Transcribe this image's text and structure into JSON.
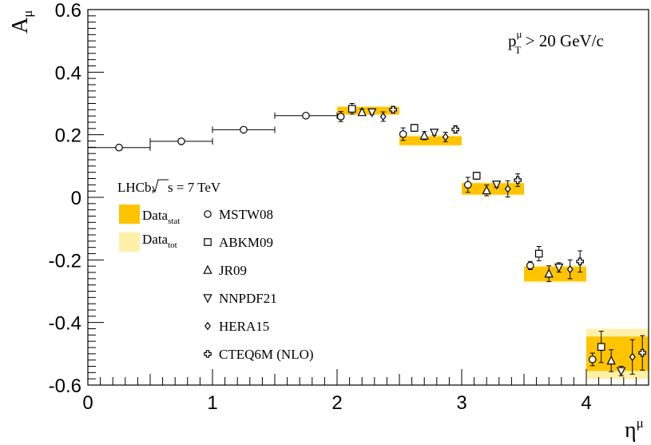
{
  "chart_data": {
    "type": "scatter",
    "xlabel": "η",
    "xlabel_sup": "μ",
    "ylabel": "A",
    "ylabel_sub": "μ",
    "xlim": [
      0,
      4.5
    ],
    "ylim": [
      -0.6,
      0.6
    ],
    "x_ticks": [
      "0",
      "1",
      "2",
      "3",
      "4"
    ],
    "y_ticks": [
      "-0.6",
      "-0.4",
      "-0.2",
      "0",
      "0.2",
      "0.4",
      "0.6"
    ],
    "annotation": {
      "pre": "p",
      "sup": "μ",
      "sub": "T",
      "post": " > 20 GeV/c"
    },
    "experiment": {
      "pre": "LHCb, ",
      "root": "s",
      "post": " = 7 TeV"
    },
    "colors": {
      "data_stat": "#ffc400",
      "data_tot": "#fff0a8",
      "marker": "#000000"
    },
    "data": {
      "legend_stat": {
        "label": "Data",
        "sub": "stat"
      },
      "legend_tot": {
        "label": "Data",
        "sub": "tot"
      },
      "bins": [
        {
          "x_low": 2.0,
          "x_high": 2.5,
          "center": 0.277,
          "stat": 0.012,
          "tot": 0.014
        },
        {
          "x_low": 2.5,
          "x_high": 3.0,
          "center": 0.181,
          "stat": 0.014,
          "tot": 0.017
        },
        {
          "x_low": 3.0,
          "x_high": 3.5,
          "center": 0.027,
          "stat": 0.018,
          "tot": 0.021
        },
        {
          "x_low": 3.5,
          "x_high": 4.0,
          "center": -0.245,
          "stat": 0.023,
          "tot": 0.028
        },
        {
          "x_low": 4.0,
          "x_high": 4.5,
          "center": -0.5,
          "stat": 0.055,
          "tot": 0.08
        }
      ]
    },
    "series": [
      {
        "name": "MSTW08",
        "marker": "circle",
        "points": [
          {
            "x": 0.25,
            "y": 0.159,
            "xerr": 0.25,
            "yerr": 0.0
          },
          {
            "x": 0.75,
            "y": 0.179,
            "xerr": 0.25,
            "yerr": 0.0
          },
          {
            "x": 1.25,
            "y": 0.216,
            "xerr": 0.25,
            "yerr": 0.0
          },
          {
            "x": 1.75,
            "y": 0.261,
            "xerr": 0.25,
            "yerr": 0.0
          },
          {
            "x": 2.03,
            "y": 0.258,
            "xerr": 0.0,
            "yerr": 0.016
          },
          {
            "x": 2.53,
            "y": 0.202,
            "xerr": 0.0,
            "yerr": 0.02
          },
          {
            "x": 3.05,
            "y": 0.04,
            "xerr": 0.0,
            "yerr": 0.024
          },
          {
            "x": 3.55,
            "y": -0.218,
            "xerr": 0.0,
            "yerr": 0.013
          },
          {
            "x": 4.05,
            "y": -0.518,
            "xerr": 0.0,
            "yerr": 0.02
          }
        ]
      },
      {
        "name": "ABKM09",
        "marker": "square",
        "points": [
          {
            "x": 2.12,
            "y": 0.283,
            "xerr": 0.0,
            "yerr": 0.017
          },
          {
            "x": 2.62,
            "y": 0.222,
            "xerr": 0.0,
            "yerr": 0.011
          },
          {
            "x": 3.12,
            "y": 0.069,
            "xerr": 0.0,
            "yerr": 0.011
          },
          {
            "x": 3.62,
            "y": -0.18,
            "xerr": 0.0,
            "yerr": 0.023
          },
          {
            "x": 4.12,
            "y": -0.478,
            "xerr": 0.0,
            "yerr": 0.05
          }
        ]
      },
      {
        "name": "JR09",
        "marker": "triangle-up",
        "points": [
          {
            "x": 2.2,
            "y": 0.272,
            "xerr": 0.0,
            "yerr": 0.01
          },
          {
            "x": 2.7,
            "y": 0.197,
            "xerr": 0.0,
            "yerr": 0.013
          },
          {
            "x": 3.2,
            "y": 0.022,
            "xerr": 0.0,
            "yerr": 0.017
          },
          {
            "x": 3.7,
            "y": -0.244,
            "xerr": 0.0,
            "yerr": 0.025
          },
          {
            "x": 4.2,
            "y": -0.522,
            "xerr": 0.0,
            "yerr": 0.035
          }
        ]
      },
      {
        "name": "NNPDF21",
        "marker": "triangle-down",
        "points": [
          {
            "x": 2.28,
            "y": 0.272,
            "xerr": 0.0,
            "yerr": 0.007
          },
          {
            "x": 2.78,
            "y": 0.207,
            "xerr": 0.0,
            "yerr": 0.008
          },
          {
            "x": 3.28,
            "y": 0.041,
            "xerr": 0.0,
            "yerr": 0.009
          },
          {
            "x": 3.78,
            "y": -0.224,
            "xerr": 0.0,
            "yerr": 0.015
          },
          {
            "x": 4.28,
            "y": -0.555,
            "xerr": 0.0,
            "yerr": 0.015
          }
        ]
      },
      {
        "name": "HERA15",
        "marker": "diamond",
        "points": [
          {
            "x": 2.37,
            "y": 0.258,
            "xerr": 0.0,
            "yerr": 0.015
          },
          {
            "x": 2.87,
            "y": 0.193,
            "xerr": 0.0,
            "yerr": 0.015
          },
          {
            "x": 3.37,
            "y": 0.027,
            "xerr": 0.0,
            "yerr": 0.026
          },
          {
            "x": 3.87,
            "y": -0.23,
            "xerr": 0.0,
            "yerr": 0.03
          },
          {
            "x": 4.37,
            "y": -0.51,
            "xerr": 0.0,
            "yerr": 0.055
          }
        ]
      },
      {
        "name": "CTEQ6M (NLO)",
        "marker": "cross",
        "points": [
          {
            "x": 2.45,
            "y": 0.28,
            "xerr": 0.0,
            "yerr": 0.01
          },
          {
            "x": 2.95,
            "y": 0.217,
            "xerr": 0.0,
            "yerr": 0.012
          },
          {
            "x": 3.45,
            "y": 0.055,
            "xerr": 0.0,
            "yerr": 0.02
          },
          {
            "x": 3.95,
            "y": -0.205,
            "xerr": 0.0,
            "yerr": 0.034
          },
          {
            "x": 4.45,
            "y": -0.497,
            "xerr": 0.0,
            "yerr": 0.055
          }
        ]
      }
    ]
  }
}
